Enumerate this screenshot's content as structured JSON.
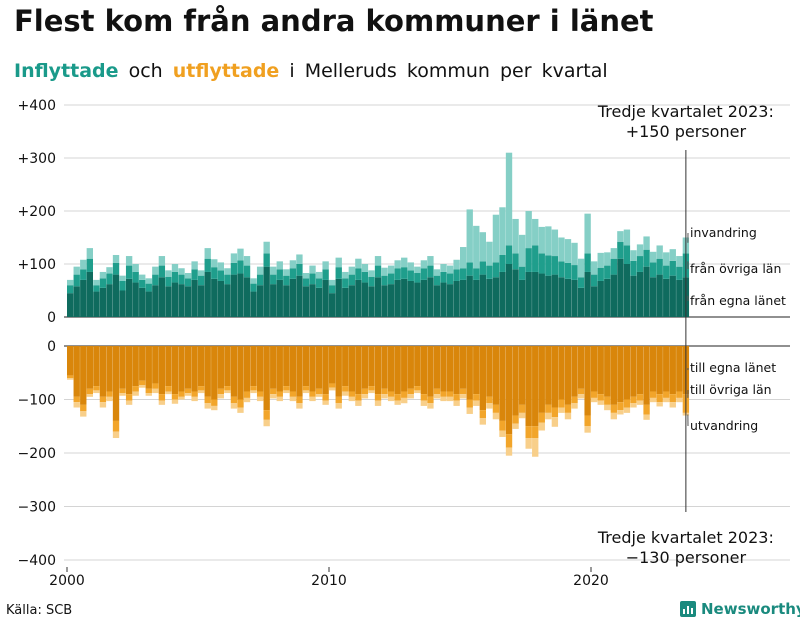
{
  "title": "Flest kom från andra kommuner i länet",
  "subtitle": {
    "in_word": "Inflyttade",
    "mid_word": "och",
    "out_word": "utflyttade",
    "rest": "i Melleruds kommun per kvartal"
  },
  "source": "Källa: SCB",
  "brand": "Newsworthy",
  "colors": {
    "in_local": "#0f6b5e",
    "in_region": "#1f9e8c",
    "in_immig": "#85cfc6",
    "out_local": "#d9860b",
    "out_region": "#f2a52a",
    "out_emig": "#f8cf8a",
    "grid": "#d4d4d4"
  },
  "chart_data": {
    "type": "bar",
    "stacked": true,
    "title": "Flest kom från andra kommuner i länet",
    "start_year": 2000,
    "quarters_per_year": 4,
    "n_quarters": 95,
    "y_ticks_top": [
      "+400",
      "+300",
      "+200",
      "+100",
      "0"
    ],
    "y_ticks_bottom": [
      "0",
      "−100",
      "−200",
      "−300",
      "−400"
    ],
    "ylim_top": [
      0,
      400
    ],
    "ylim_bottom": [
      -400,
      0
    ],
    "x_ticks": [
      "2000",
      "2010",
      "2020"
    ],
    "annotation_top": [
      "Tredje kvartalet 2023:",
      "+150 personer"
    ],
    "annotation_bottom": [
      "Tredje kvartalet 2023:",
      "−130 personer"
    ],
    "labels_top": [
      "invandring",
      "från övriga län",
      "från egna länet"
    ],
    "labels_bottom": [
      "till egna länet",
      "till övriga län",
      "utvandring"
    ],
    "inflow": {
      "from_own_county": [
        45,
        58,
        70,
        85,
        48,
        55,
        62,
        80,
        50,
        72,
        65,
        55,
        48,
        60,
        75,
        58,
        65,
        62,
        58,
        70,
        60,
        85,
        72,
        68,
        62,
        80,
        82,
        75,
        48,
        60,
        95,
        62,
        70,
        60,
        72,
        78,
        58,
        62,
        55,
        70,
        45,
        72,
        55,
        60,
        70,
        65,
        58,
        75,
        60,
        62,
        70,
        72,
        68,
        65,
        70,
        75,
        60,
        65,
        62,
        68,
        70,
        78,
        70,
        80,
        72,
        75,
        85,
        100,
        90,
        70,
        85,
        85,
        82,
        78,
        80,
        75,
        72,
        70,
        55,
        85,
        58,
        68,
        72,
        80,
        110,
        100,
        78,
        85,
        95,
        75,
        80,
        72,
        78,
        70,
        75
      ],
      "from_other_counties": [
        15,
        22,
        20,
        25,
        12,
        18,
        20,
        22,
        18,
        25,
        20,
        15,
        15,
        20,
        22,
        18,
        20,
        18,
        15,
        20,
        18,
        25,
        22,
        20,
        18,
        22,
        25,
        22,
        15,
        20,
        25,
        18,
        20,
        18,
        20,
        22,
        15,
        20,
        18,
        20,
        15,
        22,
        18,
        20,
        22,
        20,
        18,
        22,
        18,
        20,
        22,
        22,
        20,
        18,
        22,
        22,
        18,
        20,
        20,
        22,
        22,
        25,
        22,
        25,
        25,
        28,
        32,
        35,
        30,
        25,
        45,
        50,
        38,
        38,
        35,
        30,
        30,
        28,
        20,
        35,
        22,
        25,
        25,
        30,
        32,
        35,
        28,
        30,
        32,
        28,
        30,
        25,
        28,
        25,
        45
      ],
      "immigration": [
        10,
        15,
        18,
        20,
        10,
        12,
        12,
        15,
        10,
        18,
        15,
        10,
        10,
        15,
        18,
        12,
        15,
        12,
        10,
        15,
        10,
        20,
        15,
        15,
        12,
        18,
        22,
        18,
        10,
        15,
        22,
        15,
        15,
        12,
        15,
        18,
        10,
        15,
        12,
        15,
        10,
        18,
        12,
        15,
        18,
        15,
        12,
        18,
        15,
        15,
        15,
        18,
        15,
        12,
        15,
        18,
        12,
        15,
        15,
        18,
        40,
        100,
        80,
        55,
        45,
        90,
        90,
        175,
        65,
        60,
        70,
        50,
        50,
        55,
        50,
        45,
        45,
        42,
        35,
        75,
        25,
        28,
        25,
        20,
        20,
        30,
        20,
        22,
        25,
        20,
        25,
        25,
        22,
        20,
        30
      ]
    },
    "outflow": {
      "to_own_county": [
        -55,
        -95,
        -110,
        -80,
        -75,
        -95,
        -85,
        -140,
        -80,
        -90,
        -75,
        -65,
        -80,
        -70,
        -90,
        -75,
        -90,
        -85,
        -80,
        -85,
        -75,
        -95,
        -100,
        -80,
        -75,
        -95,
        -100,
        -85,
        -75,
        -85,
        -120,
        -80,
        -85,
        -75,
        -85,
        -95,
        -75,
        -85,
        -80,
        -90,
        -70,
        -95,
        -75,
        -85,
        -90,
        -80,
        -75,
        -90,
        -80,
        -85,
        -90,
        -85,
        -80,
        -75,
        -90,
        -95,
        -80,
        -85,
        -85,
        -90,
        -80,
        -100,
        -90,
        -120,
        -95,
        -110,
        -140,
        -165,
        -130,
        -110,
        -150,
        -150,
        -125,
        -110,
        -115,
        -100,
        -110,
        -95,
        -80,
        -130,
        -85,
        -90,
        -95,
        -110,
        -105,
        -100,
        -95,
        -90,
        -110,
        -85,
        -90,
        -85,
        -90,
        -85,
        -90
      ],
      "to_other_counties": [
        -5,
        -10,
        -12,
        -10,
        -8,
        -10,
        -10,
        -20,
        -8,
        -12,
        -10,
        -8,
        -8,
        -10,
        -12,
        -10,
        -10,
        -10,
        -8,
        -10,
        -8,
        -12,
        -12,
        -10,
        -8,
        -12,
        -15,
        -12,
        -8,
        -10,
        -18,
        -10,
        -10,
        -8,
        -10,
        -12,
        -8,
        -10,
        -10,
        -12,
        -8,
        -12,
        -10,
        -10,
        -12,
        -10,
        -8,
        -12,
        -10,
        -10,
        -12,
        -12,
        -10,
        -8,
        -12,
        -12,
        -10,
        -10,
        -10,
        -12,
        -10,
        -15,
        -12,
        -15,
        -12,
        -15,
        -18,
        -25,
        -15,
        -15,
        -22,
        -22,
        -18,
        -15,
        -18,
        -15,
        -15,
        -12,
        -10,
        -20,
        -12,
        -12,
        -15,
        -15,
        -15,
        -15,
        -12,
        -12,
        -18,
        -12,
        -15,
        -12,
        -15,
        -12,
        -35
      ],
      "emigration": [
        -3,
        -10,
        -10,
        -5,
        -5,
        -10,
        -8,
        -12,
        -5,
        -8,
        -8,
        -5,
        -5,
        -8,
        -8,
        -5,
        -8,
        -5,
        -5,
        -8,
        -5,
        -10,
        -8,
        -8,
        -5,
        -10,
        -10,
        -8,
        -5,
        -8,
        -12,
        -8,
        -8,
        -5,
        -8,
        -10,
        -5,
        -8,
        -5,
        -8,
        -5,
        -10,
        -8,
        -8,
        -10,
        -8,
        -5,
        -10,
        -8,
        -8,
        -8,
        -10,
        -8,
        -5,
        -10,
        -10,
        -8,
        -8,
        -8,
        -10,
        -8,
        -12,
        -10,
        -12,
        -10,
        -12,
        -12,
        -15,
        -10,
        -10,
        -20,
        -35,
        -15,
        -12,
        -18,
        -10,
        -12,
        -10,
        -8,
        -12,
        -8,
        -8,
        -10,
        -12,
        -8,
        -10,
        -8,
        -8,
        -10,
        -8,
        -8,
        -8,
        -10,
        -8,
        -5
      ]
    }
  }
}
